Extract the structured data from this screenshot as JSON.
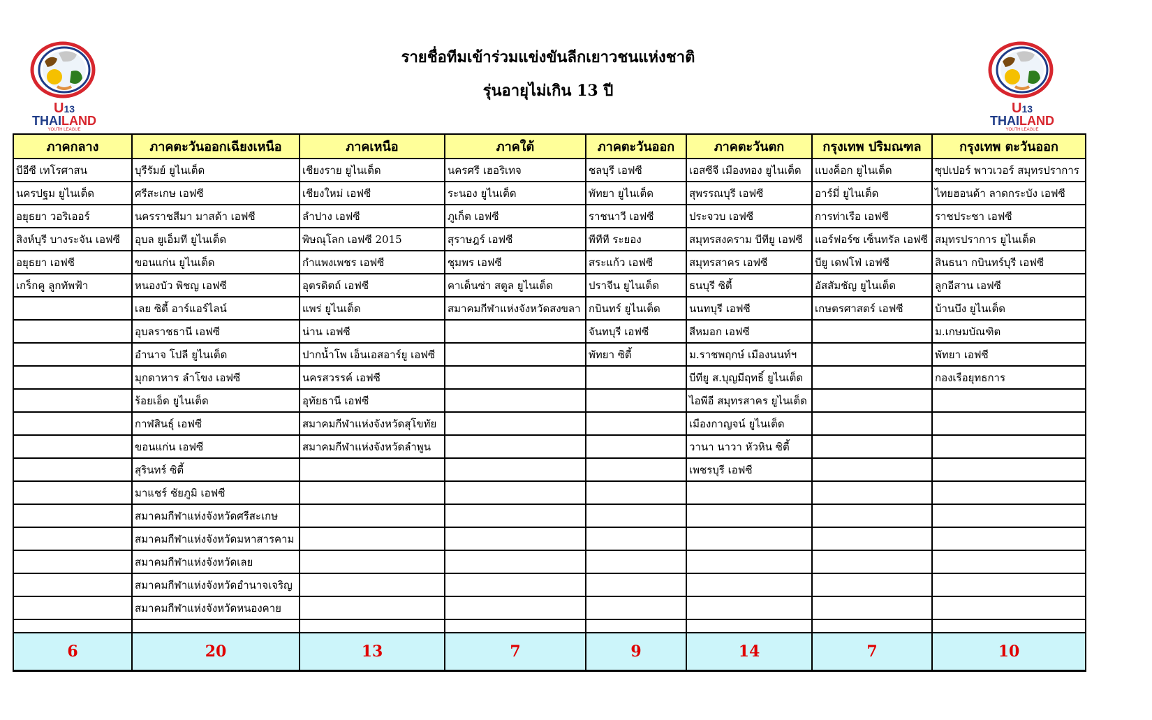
{
  "header": {
    "title": "รายชื่อทีมเข้าร่วมแข่งขันลีกเยาวชนแห่งชาติ",
    "subtitle": "รุ่นอายุไม่เกิน 13 ปี"
  },
  "logo": {
    "text": "U13 THAILAND YOUTH LEAGUE",
    "colors": {
      "red": "#d7262e",
      "blue": "#1f3c88"
    }
  },
  "columns": [
    "ภาคกลาง",
    "ภาคตะวันออกเฉียงเหนือ",
    "ภาคเหนือ",
    "ภาคใต้",
    "ภาคตะวันออก",
    "ภาคตะวันตก",
    "กรุงเทพ ปริมณฑล",
    "กรุงเทพ ตะวันออก"
  ],
  "rows": [
    [
      "บีอีซี เทโรศาสน",
      "บุรีรัมย์ ยูไนเต็ด",
      "เชียงราย ยูไนเต็ด",
      "นครศรี เฮอริเทจ",
      "ชลบุรี เอฟซี",
      "เอสซีจี เมืองทอง ยูไนเต็ด",
      "แบงค็อก ยูไนเต็ด",
      "ซุปเปอร์ พาวเวอร์ สมุทรปราการ"
    ],
    [
      "นครปฐม ยูไนเต็ด",
      "ศรีสะเกษ เอฟซี",
      "เชียงใหม่ เอฟซี",
      "ระนอง ยูไนเต็ด",
      "พัทยา ยูไนเต็ด",
      "สุพรรณบุรี เอฟซี",
      "อาร์มี่ ยูไนเต็ด",
      "ไทยฮอนด้า ลาดกระบัง เอฟซี"
    ],
    [
      "อยุธยา วอริเออร์",
      "นครราชสีมา มาสด้า เอฟซี",
      "ลำปาง เอฟซี",
      "ภูเก็ต เอฟซี",
      "ราชนาวี เอฟซี",
      "ประจวบ เอฟซี",
      "การท่าเรือ เอฟซี",
      "ราชประชา เอฟซี"
    ],
    [
      "สิงห์บุรี บางระจัน เอฟซี",
      "อุบล ยูเอ็มที ยูไนเต็ด",
      "พิษณุโลก เอฟซี 2015",
      "สุราษฎร์ เอฟซี",
      "พีทีที ระยอง",
      "สมุทรสงคราม บีทียู เอฟซี",
      "แอร์ฟอร์ซ เซ็นทรัล เอฟซี",
      "สมุทรปราการ ยูไนเต็ด"
    ],
    [
      "อยุธยา เอฟซี",
      "ขอนแก่น ยูไนเต็ด",
      "กำแพงเพชร เอฟซี",
      "ชุมพร เอฟซี",
      "สระแก้ว เอฟซี",
      "สมุทรสาคร เอฟซี",
      "บียู เดฟโฟ่ เอฟซี",
      "สินธนา กบินทร์บุรี เอฟซี"
    ],
    [
      "เกร็กคู ลูกทัพฟ้า",
      "หนองบัว พิชญ เอฟซี",
      "อุตรดิตถ์ เอฟซี",
      "คาเด็นซ่า สตูล ยูไนเต็ด",
      "ปราจีน ยูไนเต็ด",
      "ธนบุรี ซิตี้",
      "อัสสัมชัญ ยูไนเต็ด",
      "ลูกอีสาน เอฟซี"
    ],
    [
      "",
      "เลย ซิตี้ อาร์แอร์ไลน์",
      "แพร่ ยูไนเต็ด",
      "สมาคมกีฬาแห่งจังหวัดสงขลา",
      "กบินทร์ ยูไนเต็ด",
      "นนทบุรี เอฟซี",
      "เกษตรศาสตร์ เอฟซี",
      "บ้านบึง ยูไนเต็ด"
    ],
    [
      "",
      "อุบลราชธานี เอฟซี",
      "น่าน เอฟซี",
      "",
      "จันทบุรี เอฟซี",
      "สีหมอก เอฟซี",
      "",
      "ม.เกษมบัณฑิต"
    ],
    [
      "",
      "อำนาจ โปลี ยูไนเต็ด",
      "ปากน้ำโพ เอ็นเอสอาร์ยู เอฟซี",
      "",
      "พัทยา ซิตี้",
      "ม.ราชพฤกษ์ เมืองนนท์ฯ",
      "",
      "พัทยา เอฟซี"
    ],
    [
      "",
      "มุกดาหาร ลำโขง เอฟซี",
      "นครสวรรค์ เอฟซี",
      "",
      "",
      "บีทียู ส.บุญมีฤทธิ์ ยูไนเต็ด",
      "",
      "กองเรือยุทธการ"
    ],
    [
      "",
      "ร้อยเอ็ด ยูไนเต็ด",
      "อุทัยธานี เอฟซี",
      "",
      "",
      "ไอพีอี สมุทรสาคร ยูไนเต็ด",
      "",
      ""
    ],
    [
      "",
      "กาฬสินธุ์ เอฟซี",
      "สมาคมกีฬาแห่งจังหวัดสุโขทัย",
      "",
      "",
      "เมืองกาญจน์ ยูไนเต็ด",
      "",
      ""
    ],
    [
      "",
      "ขอนแก่น เอฟซี",
      "สมาคมกีฬาแห่งจังหวัดลำพูน",
      "",
      "",
      "วานา นาวา หัวหิน ซิตี้",
      "",
      ""
    ],
    [
      "",
      "สุรินทร์ ซิตี้",
      "",
      "",
      "",
      "เพชรบุรี เอฟซี",
      "",
      ""
    ],
    [
      "",
      "มาแชร์ ชัยภูมิ เอฟซี",
      "",
      "",
      "",
      "",
      "",
      ""
    ],
    [
      "",
      "สมาคมกีฬาแห่งจังหวัดศรีสะเกษ",
      "",
      "",
      "",
      "",
      "",
      ""
    ],
    [
      "",
      "สมาคมกีฬาแห่งจังหวัดมหาสารคาม",
      "",
      "",
      "",
      "",
      "",
      ""
    ],
    [
      "",
      "สมาคมกีฬาแห่งจังหวัดเลย",
      "",
      "",
      "",
      "",
      "",
      ""
    ],
    [
      "",
      "สมาคมกีฬาแห่งจังหวัดอำนาจเจริญ",
      "",
      "",
      "",
      "",
      "",
      ""
    ],
    [
      "",
      "สมาคมกีฬาแห่งจังหวัดหนองคาย",
      "",
      "",
      "",
      "",
      "",
      ""
    ]
  ],
  "totals": [
    "6",
    "20",
    "13",
    "7",
    "9",
    "14",
    "7",
    "10"
  ]
}
